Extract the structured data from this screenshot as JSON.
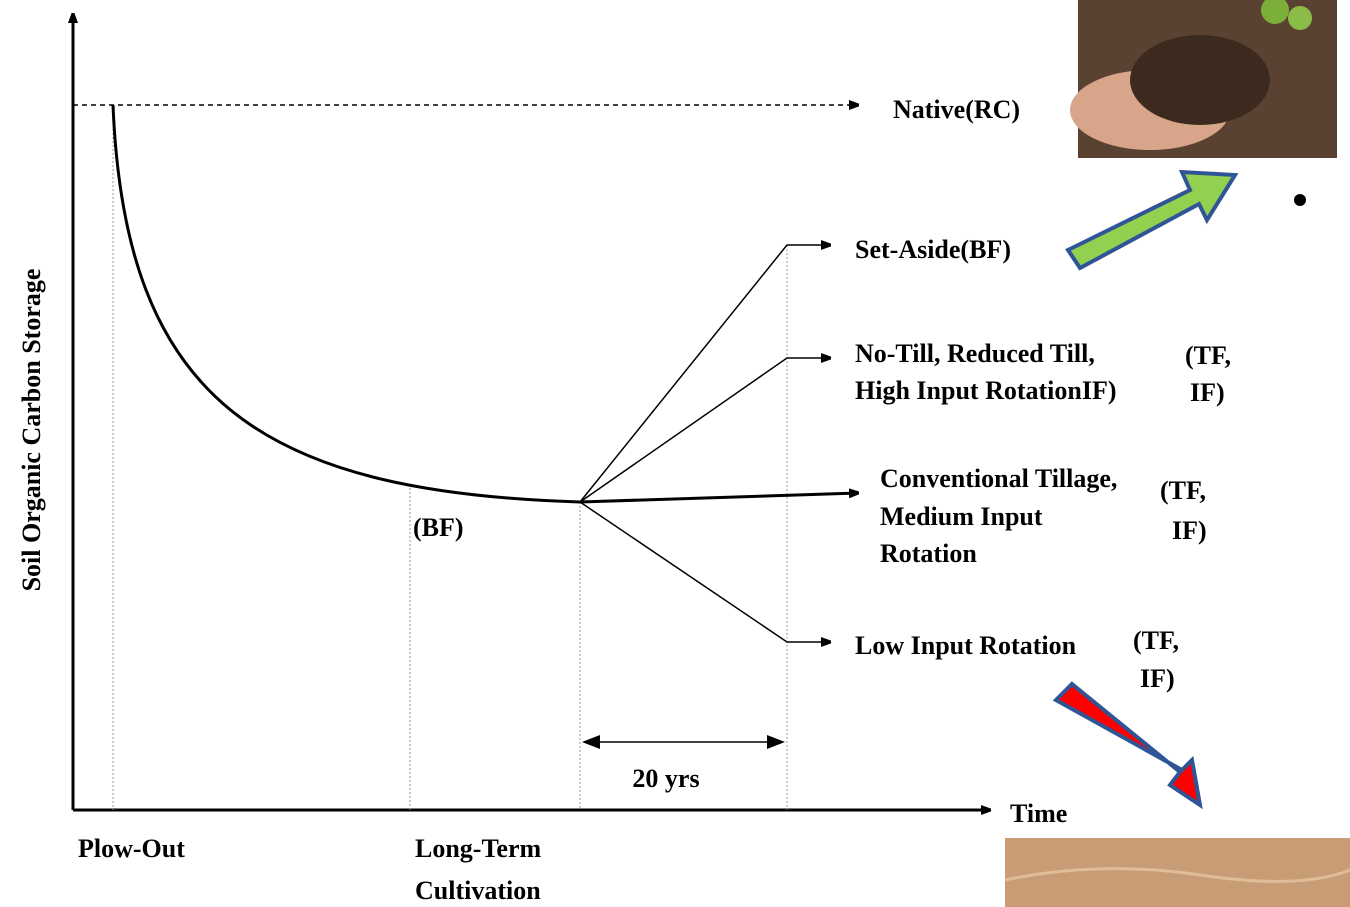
{
  "axes": {
    "y_label": "Soil Organic Carbon Storage",
    "x_label": "Time"
  },
  "native": "Native(RC)",
  "set_aside": "Set-Aside(BF)",
  "no_till": {
    "lines": [
      "No-Till, Reduced Till,",
      "High Input RotationIF)"
    ],
    "note": [
      "(TF,",
      "IF)"
    ]
  },
  "conventional": {
    "lines": [
      "Conventional Tillage,",
      "Medium Input",
      "Rotation"
    ],
    "note": [
      "(TF,",
      "IF)"
    ]
  },
  "low_input": {
    "lines": [
      "Low Input Rotation"
    ],
    "note": [
      "(TF,",
      "IF)"
    ]
  },
  "baseline_label": "(BF)",
  "interval_label": "20 yrs",
  "x_labels": {
    "plow_out": "Plow-Out",
    "long_term": [
      "Long-Term",
      "Cultivation"
    ]
  }
}
